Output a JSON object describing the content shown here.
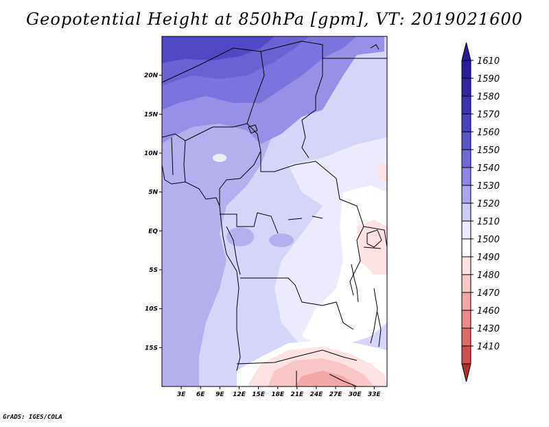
{
  "title": "Geopotential Height at 850hPa [gpm], VT: 2019021600",
  "credit": "GrADS: IGES/COLA",
  "map": {
    "region": "Central Africa",
    "lon_range": [
      0,
      35
    ],
    "lat_range": [
      -20,
      25
    ],
    "lat_labels": [
      {
        "lat": 20,
        "text": "20N"
      },
      {
        "lat": 15,
        "text": "15N"
      },
      {
        "lat": 10,
        "text": "10N"
      },
      {
        "lat": 5,
        "text": "5N"
      },
      {
        "lat": 0,
        "text": "EQ"
      },
      {
        "lat": -5,
        "text": "5S"
      },
      {
        "lat": -10,
        "text": "10S"
      },
      {
        "lat": -15,
        "text": "15S"
      }
    ],
    "lon_labels": [
      {
        "lon": 3,
        "text": "3E"
      },
      {
        "lon": 6,
        "text": "6E"
      },
      {
        "lon": 9,
        "text": "9E"
      },
      {
        "lon": 12,
        "text": "12E"
      },
      {
        "lon": 15,
        "text": "15E"
      },
      {
        "lon": 18,
        "text": "18E"
      },
      {
        "lon": 21,
        "text": "21E"
      },
      {
        "lon": 24,
        "text": "24E"
      },
      {
        "lon": 27,
        "text": "27E"
      },
      {
        "lon": 30,
        "text": "30E"
      },
      {
        "lon": 33,
        "text": "33E"
      }
    ]
  },
  "colorbar": {
    "levels": [
      {
        "label": "1610",
        "color": "#2a1a9c"
      },
      {
        "label": "1590",
        "color": "#3424a8"
      },
      {
        "label": "1580",
        "color": "#3e32b4"
      },
      {
        "label": "1570",
        "color": "#4a42c0"
      },
      {
        "label": "1560",
        "color": "#5a54cc"
      },
      {
        "label": "1550",
        "color": "#7068d8"
      },
      {
        "label": "1540",
        "color": "#8c86e4"
      },
      {
        "label": "1530",
        "color": "#aaa6ee"
      },
      {
        "label": "1520",
        "color": "#cccaf6"
      },
      {
        "label": "1510",
        "color": "#eceafc"
      },
      {
        "label": "1500",
        "color": "#ffffff"
      },
      {
        "label": "1490",
        "color": "#fce2e2"
      },
      {
        "label": "1480",
        "color": "#f8c6c6"
      },
      {
        "label": "1470",
        "color": "#f2a8a8"
      },
      {
        "label": "1460",
        "color": "#ea8a8a"
      },
      {
        "label": "1430",
        "color": "#e06a6a"
      },
      {
        "label": "1410",
        "color": "#d44c4c"
      }
    ],
    "bottom_tip_color": "#b52c2c"
  }
}
